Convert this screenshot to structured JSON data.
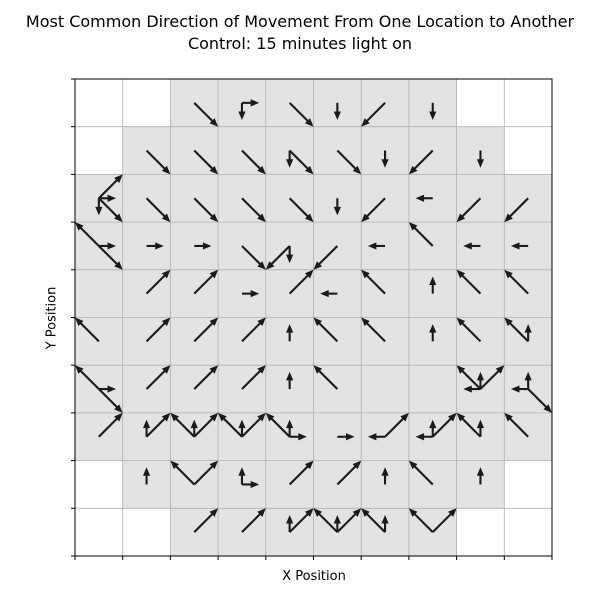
{
  "chart_data": {
    "type": "vector-grid",
    "title": "Most Common Direction of Movement From One Location to Another",
    "subtitle": "Control: 15 minutes light on",
    "xlabel": "X Position",
    "ylabel": "Y Position",
    "xlim": [
      0,
      10
    ],
    "ylim": [
      0,
      10
    ],
    "grid": true,
    "tick_labels": false,
    "colors": {
      "occupied": "#e3e3e3",
      "gridline": "#b0b0b0",
      "arrow": "#1a1a1a",
      "axis": "#000000"
    },
    "occupied_cells": [
      [
        2,
        9
      ],
      [
        3,
        9
      ],
      [
        4,
        9
      ],
      [
        5,
        9
      ],
      [
        6,
        9
      ],
      [
        7,
        9
      ],
      [
        1,
        8
      ],
      [
        2,
        8
      ],
      [
        3,
        8
      ],
      [
        4,
        8
      ],
      [
        5,
        8
      ],
      [
        6,
        8
      ],
      [
        7,
        8
      ],
      [
        8,
        8
      ],
      [
        0,
        7
      ],
      [
        1,
        7
      ],
      [
        2,
        7
      ],
      [
        3,
        7
      ],
      [
        4,
        7
      ],
      [
        5,
        7
      ],
      [
        6,
        7
      ],
      [
        7,
        7
      ],
      [
        8,
        7
      ],
      [
        9,
        7
      ],
      [
        0,
        6
      ],
      [
        1,
        6
      ],
      [
        2,
        6
      ],
      [
        3,
        6
      ],
      [
        4,
        6
      ],
      [
        5,
        6
      ],
      [
        6,
        6
      ],
      [
        7,
        6
      ],
      [
        8,
        6
      ],
      [
        9,
        6
      ],
      [
        0,
        5
      ],
      [
        1,
        5
      ],
      [
        2,
        5
      ],
      [
        3,
        5
      ],
      [
        4,
        5
      ],
      [
        5,
        5
      ],
      [
        6,
        5
      ],
      [
        7,
        5
      ],
      [
        8,
        5
      ],
      [
        9,
        5
      ],
      [
        0,
        4
      ],
      [
        1,
        4
      ],
      [
        2,
        4
      ],
      [
        3,
        4
      ],
      [
        4,
        4
      ],
      [
        5,
        4
      ],
      [
        6,
        4
      ],
      [
        7,
        4
      ],
      [
        8,
        4
      ],
      [
        9,
        4
      ],
      [
        0,
        3
      ],
      [
        1,
        3
      ],
      [
        2,
        3
      ],
      [
        3,
        3
      ],
      [
        4,
        3
      ],
      [
        5,
        3
      ],
      [
        6,
        3
      ],
      [
        7,
        3
      ],
      [
        8,
        3
      ],
      [
        9,
        3
      ],
      [
        0,
        2
      ],
      [
        1,
        2
      ],
      [
        2,
        2
      ],
      [
        3,
        2
      ],
      [
        4,
        2
      ],
      [
        5,
        2
      ],
      [
        6,
        2
      ],
      [
        7,
        2
      ],
      [
        8,
        2
      ],
      [
        9,
        2
      ],
      [
        1,
        1
      ],
      [
        2,
        1
      ],
      [
        3,
        1
      ],
      [
        4,
        1
      ],
      [
        5,
        1
      ],
      [
        6,
        1
      ],
      [
        7,
        1
      ],
      [
        8,
        1
      ],
      [
        2,
        0
      ],
      [
        3,
        0
      ],
      [
        4,
        0
      ],
      [
        5,
        0
      ],
      [
        6,
        0
      ],
      [
        7,
        0
      ]
    ],
    "movements": [
      {
        "x": 2.5,
        "y": 9.5,
        "dir": "SE"
      },
      {
        "x": 3.5,
        "y": 9.5,
        "dir": "E"
      },
      {
        "x": 3.5,
        "y": 9.5,
        "dir": "S"
      },
      {
        "x": 4.5,
        "y": 9.5,
        "dir": "SE"
      },
      {
        "x": 5.5,
        "y": 9.5,
        "dir": "S"
      },
      {
        "x": 6.5,
        "y": 9.5,
        "dir": "SW"
      },
      {
        "x": 7.5,
        "y": 9.5,
        "dir": "S"
      },
      {
        "x": 1.5,
        "y": 8.5,
        "dir": "SE"
      },
      {
        "x": 2.5,
        "y": 8.5,
        "dir": "SE"
      },
      {
        "x": 3.5,
        "y": 8.5,
        "dir": "SE"
      },
      {
        "x": 4.5,
        "y": 8.5,
        "dir": "SE"
      },
      {
        "x": 4.5,
        "y": 8.5,
        "dir": "S"
      },
      {
        "x": 5.5,
        "y": 8.5,
        "dir": "SE"
      },
      {
        "x": 6.5,
        "y": 8.5,
        "dir": "S"
      },
      {
        "x": 7.5,
        "y": 8.5,
        "dir": "SW"
      },
      {
        "x": 8.5,
        "y": 8.5,
        "dir": "S"
      },
      {
        "x": 0.5,
        "y": 7.5,
        "dir": "NE"
      },
      {
        "x": 0.5,
        "y": 7.5,
        "dir": "E"
      },
      {
        "x": 0.5,
        "y": 7.5,
        "dir": "SE"
      },
      {
        "x": 0.5,
        "y": 7.5,
        "dir": "S"
      },
      {
        "x": 1.5,
        "y": 7.5,
        "dir": "SE"
      },
      {
        "x": 2.5,
        "y": 7.5,
        "dir": "SE"
      },
      {
        "x": 3.5,
        "y": 7.5,
        "dir": "SE"
      },
      {
        "x": 4.5,
        "y": 7.5,
        "dir": "SE"
      },
      {
        "x": 5.5,
        "y": 7.5,
        "dir": "S"
      },
      {
        "x": 6.5,
        "y": 7.5,
        "dir": "SW"
      },
      {
        "x": 7.5,
        "y": 7.5,
        "dir": "W"
      },
      {
        "x": 8.5,
        "y": 7.5,
        "dir": "SW"
      },
      {
        "x": 9.5,
        "y": 7.5,
        "dir": "SW"
      },
      {
        "x": 0.5,
        "y": 6.5,
        "dir": "NW"
      },
      {
        "x": 0.5,
        "y": 6.5,
        "dir": "E"
      },
      {
        "x": 0.5,
        "y": 6.5,
        "dir": "SE"
      },
      {
        "x": 1.5,
        "y": 6.5,
        "dir": "E"
      },
      {
        "x": 2.5,
        "y": 6.5,
        "dir": "E"
      },
      {
        "x": 3.5,
        "y": 6.5,
        "dir": "SE"
      },
      {
        "x": 4.5,
        "y": 6.5,
        "dir": "S"
      },
      {
        "x": 4.5,
        "y": 6.5,
        "dir": "SW"
      },
      {
        "x": 5.5,
        "y": 6.5,
        "dir": "SW"
      },
      {
        "x": 6.5,
        "y": 6.5,
        "dir": "W"
      },
      {
        "x": 7.5,
        "y": 6.5,
        "dir": "NW"
      },
      {
        "x": 8.5,
        "y": 6.5,
        "dir": "W"
      },
      {
        "x": 9.5,
        "y": 6.5,
        "dir": "W"
      },
      {
        "x": 1.5,
        "y": 5.5,
        "dir": "NE"
      },
      {
        "x": 2.5,
        "y": 5.5,
        "dir": "NE"
      },
      {
        "x": 3.5,
        "y": 5.5,
        "dir": "E"
      },
      {
        "x": 4.5,
        "y": 5.5,
        "dir": "NE"
      },
      {
        "x": 5.5,
        "y": 5.5,
        "dir": "W"
      },
      {
        "x": 6.5,
        "y": 5.5,
        "dir": "NW"
      },
      {
        "x": 7.5,
        "y": 5.5,
        "dir": "N"
      },
      {
        "x": 8.5,
        "y": 5.5,
        "dir": "NW"
      },
      {
        "x": 9.5,
        "y": 5.5,
        "dir": "NW"
      },
      {
        "x": 0.5,
        "y": 4.5,
        "dir": "NW"
      },
      {
        "x": 1.5,
        "y": 4.5,
        "dir": "NE"
      },
      {
        "x": 2.5,
        "y": 4.5,
        "dir": "NE"
      },
      {
        "x": 3.5,
        "y": 4.5,
        "dir": "NE"
      },
      {
        "x": 4.5,
        "y": 4.5,
        "dir": "N"
      },
      {
        "x": 5.5,
        "y": 4.5,
        "dir": "NW"
      },
      {
        "x": 6.5,
        "y": 4.5,
        "dir": "NW"
      },
      {
        "x": 7.5,
        "y": 4.5,
        "dir": "N"
      },
      {
        "x": 8.5,
        "y": 4.5,
        "dir": "NW"
      },
      {
        "x": 9.5,
        "y": 4.5,
        "dir": "NW"
      },
      {
        "x": 9.5,
        "y": 4.5,
        "dir": "N"
      },
      {
        "x": 0.5,
        "y": 3.5,
        "dir": "NW"
      },
      {
        "x": 0.5,
        "y": 3.5,
        "dir": "E"
      },
      {
        "x": 0.5,
        "y": 3.5,
        "dir": "SE"
      },
      {
        "x": 1.5,
        "y": 3.5,
        "dir": "NE"
      },
      {
        "x": 2.5,
        "y": 3.5,
        "dir": "NE"
      },
      {
        "x": 3.5,
        "y": 3.5,
        "dir": "NE"
      },
      {
        "x": 4.5,
        "y": 3.5,
        "dir": "N"
      },
      {
        "x": 5.5,
        "y": 3.5,
        "dir": "NW"
      },
      {
        "x": 8.5,
        "y": 3.5,
        "dir": "NW"
      },
      {
        "x": 8.5,
        "y": 3.5,
        "dir": "W"
      },
      {
        "x": 8.5,
        "y": 3.5,
        "dir": "N"
      },
      {
        "x": 8.5,
        "y": 3.5,
        "dir": "NE"
      },
      {
        "x": 9.5,
        "y": 3.5,
        "dir": "N"
      },
      {
        "x": 9.5,
        "y": 3.5,
        "dir": "W"
      },
      {
        "x": 9.5,
        "y": 3.5,
        "dir": "SE"
      },
      {
        "x": 0.5,
        "y": 2.5,
        "dir": "NE"
      },
      {
        "x": 1.5,
        "y": 2.5,
        "dir": "N"
      },
      {
        "x": 1.5,
        "y": 2.5,
        "dir": "NE"
      },
      {
        "x": 2.5,
        "y": 2.5,
        "dir": "NW"
      },
      {
        "x": 2.5,
        "y": 2.5,
        "dir": "N"
      },
      {
        "x": 2.5,
        "y": 2.5,
        "dir": "NE"
      },
      {
        "x": 3.5,
        "y": 2.5,
        "dir": "NW"
      },
      {
        "x": 3.5,
        "y": 2.5,
        "dir": "N"
      },
      {
        "x": 3.5,
        "y": 2.5,
        "dir": "NE"
      },
      {
        "x": 4.5,
        "y": 2.5,
        "dir": "NW"
      },
      {
        "x": 4.5,
        "y": 2.5,
        "dir": "N"
      },
      {
        "x": 4.5,
        "y": 2.5,
        "dir": "E"
      },
      {
        "x": 5.5,
        "y": 2.5,
        "dir": "E"
      },
      {
        "x": 6.5,
        "y": 2.5,
        "dir": "W"
      },
      {
        "x": 6.5,
        "y": 2.5,
        "dir": "NE"
      },
      {
        "x": 7.5,
        "y": 2.5,
        "dir": "W"
      },
      {
        "x": 7.5,
        "y": 2.5,
        "dir": "NE"
      },
      {
        "x": 7.5,
        "y": 2.5,
        "dir": "N"
      },
      {
        "x": 8.5,
        "y": 2.5,
        "dir": "NW"
      },
      {
        "x": 8.5,
        "y": 2.5,
        "dir": "N"
      },
      {
        "x": 9.5,
        "y": 2.5,
        "dir": "NW"
      },
      {
        "x": 1.5,
        "y": 1.5,
        "dir": "N"
      },
      {
        "x": 2.5,
        "y": 1.5,
        "dir": "NW"
      },
      {
        "x": 2.5,
        "y": 1.5,
        "dir": "NE"
      },
      {
        "x": 3.5,
        "y": 1.5,
        "dir": "N"
      },
      {
        "x": 3.5,
        "y": 1.5,
        "dir": "E"
      },
      {
        "x": 4.5,
        "y": 1.5,
        "dir": "NE"
      },
      {
        "x": 5.5,
        "y": 1.5,
        "dir": "NE"
      },
      {
        "x": 6.5,
        "y": 1.5,
        "dir": "N"
      },
      {
        "x": 7.5,
        "y": 1.5,
        "dir": "NW"
      },
      {
        "x": 8.5,
        "y": 1.5,
        "dir": "N"
      },
      {
        "x": 2.5,
        "y": 0.5,
        "dir": "NE"
      },
      {
        "x": 3.5,
        "y": 0.5,
        "dir": "NE"
      },
      {
        "x": 4.5,
        "y": 0.5,
        "dir": "N"
      },
      {
        "x": 4.5,
        "y": 0.5,
        "dir": "NE"
      },
      {
        "x": 5.5,
        "y": 0.5,
        "dir": "NW"
      },
      {
        "x": 5.5,
        "y": 0.5,
        "dir": "N"
      },
      {
        "x": 5.5,
        "y": 0.5,
        "dir": "NE"
      },
      {
        "x": 6.5,
        "y": 0.5,
        "dir": "NW"
      },
      {
        "x": 6.5,
        "y": 0.5,
        "dir": "N"
      },
      {
        "x": 7.5,
        "y": 0.5,
        "dir": "NW"
      },
      {
        "x": 7.5,
        "y": 0.5,
        "dir": "NE"
      }
    ]
  }
}
